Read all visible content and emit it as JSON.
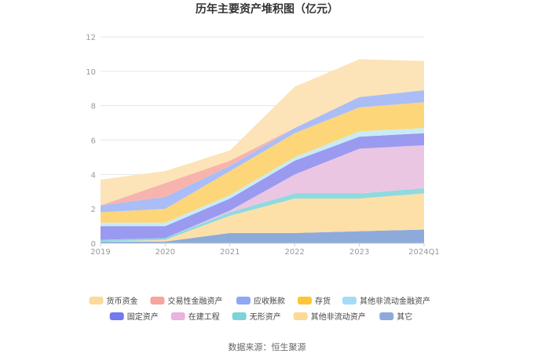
{
  "chart_data": {
    "type": "area",
    "stacked": true,
    "title": "历年主要资产堆积图（亿元）",
    "xlabel": "",
    "ylabel": "",
    "categories": [
      "2019",
      "2020",
      "2021",
      "2022",
      "2023",
      "2024Q1"
    ],
    "ylim": [
      0,
      12
    ],
    "yticks": [
      "0",
      "2",
      "4",
      "6",
      "8",
      "10",
      "12"
    ],
    "grid": true,
    "legend_position": "bottom",
    "series": [
      {
        "name": "其它",
        "color": "#8eaadb",
        "values": [
          0.1,
          0.1,
          0.6,
          0.6,
          0.7,
          0.8
        ]
      },
      {
        "name": "其他非流动资产",
        "color": "#fde0a8",
        "values": [
          0.0,
          0.1,
          1.0,
          2.0,
          1.9,
          2.1
        ]
      },
      {
        "name": "无形资产",
        "color": "#8fdadf",
        "values": [
          0.1,
          0.1,
          0.2,
          0.3,
          0.3,
          0.3
        ]
      },
      {
        "name": "在建工程",
        "color": "#eac6e3",
        "values": [
          0.0,
          0.0,
          0.1,
          1.1,
          2.6,
          2.5
        ]
      },
      {
        "name": "固定资产",
        "color": "#9a9af0",
        "values": [
          0.8,
          0.7,
          0.7,
          0.8,
          0.7,
          0.7
        ]
      },
      {
        "name": "其他非流动金融资产",
        "color": "#c8ecf7",
        "values": [
          0.2,
          0.2,
          0.2,
          0.2,
          0.3,
          0.3
        ]
      },
      {
        "name": "存货",
        "color": "#fdd67a",
        "values": [
          0.6,
          0.8,
          1.4,
          1.4,
          1.4,
          1.5
        ]
      },
      {
        "name": "应收账款",
        "color": "#aabdf7",
        "values": [
          0.4,
          0.7,
          0.3,
          0.3,
          0.6,
          0.7
        ]
      },
      {
        "name": "交易性金融资产",
        "color": "#f7b4ad",
        "values": [
          0.0,
          0.8,
          0.3,
          0.0,
          0.0,
          0.0
        ]
      },
      {
        "name": "货币资金",
        "color": "#fde3b8",
        "values": [
          1.5,
          0.7,
          0.6,
          2.4,
          2.2,
          1.7
        ]
      }
    ],
    "legend": [
      {
        "name": "货币资金",
        "color": "#fdd99a"
      },
      {
        "name": "交易性金融资产",
        "color": "#f5a59c"
      },
      {
        "name": "应收账款",
        "color": "#8fa8f5"
      },
      {
        "name": "存货",
        "color": "#fcc636"
      },
      {
        "name": "其他非流动金融资产",
        "color": "#a5dcf5"
      },
      {
        "name": "固定资产",
        "color": "#7479ee"
      },
      {
        "name": "在建工程",
        "color": "#e8b3dd"
      },
      {
        "name": "无形资产",
        "color": "#7cd3d8"
      },
      {
        "name": "其他非流动资产",
        "color": "#fcd995"
      },
      {
        "name": "其它",
        "color": "#8eaadb"
      }
    ]
  },
  "footer": {
    "source": "数据来源：恒生聚源"
  }
}
